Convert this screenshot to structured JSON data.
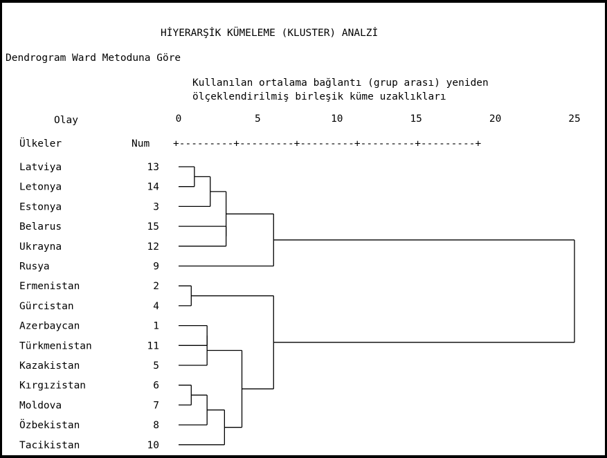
{
  "title": "HİYERARŞİK KÜMELEME (KLUSTER) ANALZİ",
  "subtitle": "Dendrogram Ward Metoduna Göre",
  "caption_line1": "Kullanılan ortalama bağlantı (grup arası) yeniden",
  "caption_line2": "ölçeklendirilmiş birleşik küme uzaklıkları",
  "header": {
    "case_label": "Olay",
    "country_label": "Ülkeler",
    "num_label": "Num",
    "scale_ticks": [
      "0",
      "5",
      "10",
      "15",
      "20",
      "25"
    ],
    "scale_ruler": "+---------+---------+---------+---------+---------+"
  },
  "chart_data": {
    "type": "dendrogram",
    "method": "Ward",
    "distance_range": [
      0,
      25
    ],
    "leaves": [
      {
        "name": "Latviya",
        "num": "13"
      },
      {
        "name": "Letonya",
        "num": "14"
      },
      {
        "name": "Estonya",
        "num": "3"
      },
      {
        "name": "Belarus",
        "num": "15"
      },
      {
        "name": "Ukrayna",
        "num": "12"
      },
      {
        "name": "Rusya",
        "num": "9"
      },
      {
        "name": "Ermenistan",
        "num": "2"
      },
      {
        "name": "Gürcistan",
        "num": "4"
      },
      {
        "name": "Azerbaycan",
        "num": "1"
      },
      {
        "name": "Türkmenistan",
        "num": "11"
      },
      {
        "name": "Kazakistan",
        "num": "5"
      },
      {
        "name": "Kırgızistan",
        "num": "6"
      },
      {
        "name": "Moldova",
        "num": "7"
      },
      {
        "name": "Özbekistan",
        "num": "8"
      },
      {
        "name": "Tacikistan",
        "num": "10"
      }
    ],
    "merges": [
      {
        "a": "L0",
        "b": "L1",
        "height": 1.0
      },
      {
        "a": "M0",
        "b": "L2",
        "height": 2.0
      },
      {
        "a": "L3",
        "b": "L4",
        "height": 3.0
      },
      {
        "a": "M1",
        "b": "M2",
        "height": 3.0
      },
      {
        "a": "M3",
        "b": "L5",
        "height": 6.0
      },
      {
        "a": "L6",
        "b": "L7",
        "height": 0.8
      },
      {
        "a": "L8",
        "b": "L9",
        "height": 1.8
      },
      {
        "a": "M6",
        "b": "L10",
        "height": 1.8
      },
      {
        "a": "L11",
        "b": "L12",
        "height": 0.8
      },
      {
        "a": "M8",
        "b": "L13",
        "height": 1.8
      },
      {
        "a": "M9",
        "b": "L14",
        "height": 2.9
      },
      {
        "a": "M7",
        "b": "M10",
        "height": 4.0
      },
      {
        "a": "M5",
        "b": "M11",
        "height": 6.0
      },
      {
        "a": "M4",
        "b": "M12",
        "height": 25.0
      }
    ]
  }
}
